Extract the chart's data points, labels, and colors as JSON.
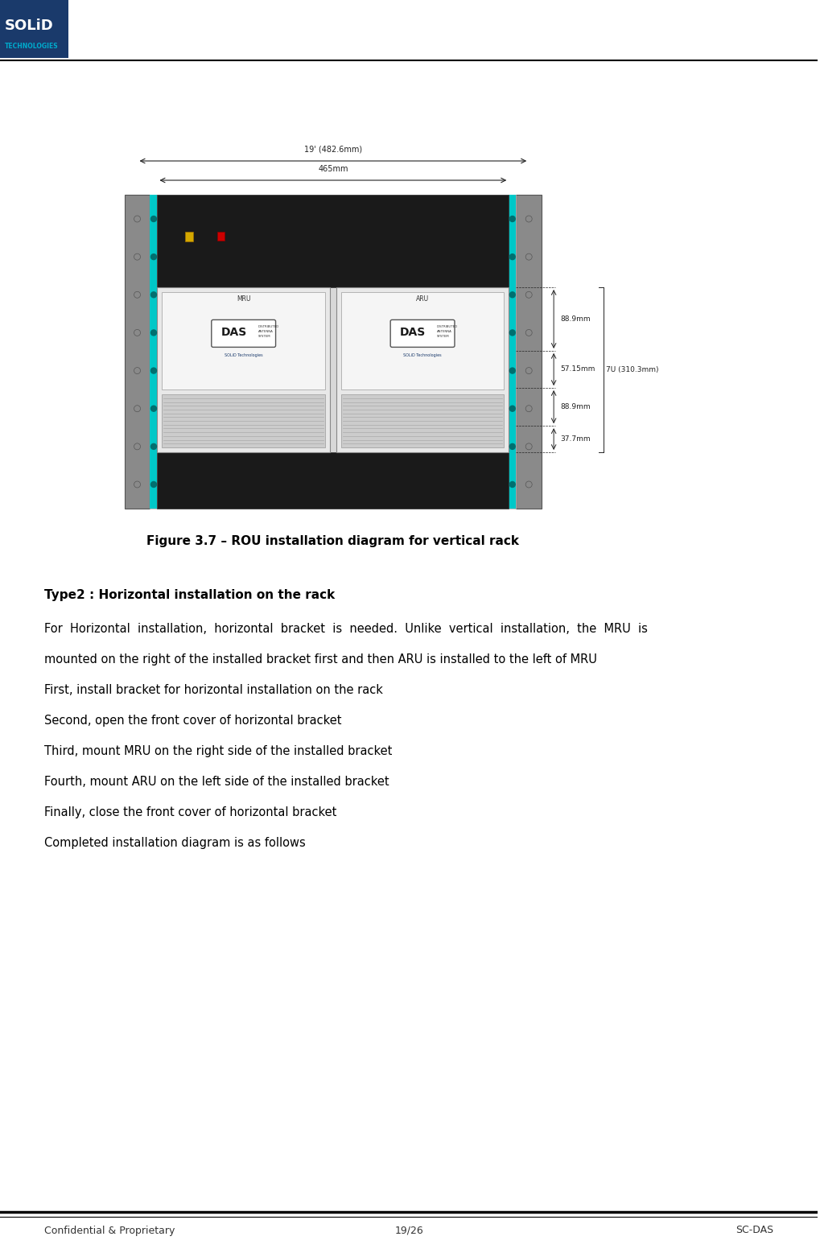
{
  "page_width": 10.19,
  "page_height": 15.62,
  "bg_color": "#ffffff",
  "header_logo_color": "#1a3a6b",
  "header_line_color": "#000000",
  "footer_line_color": "#000000",
  "footer_text_left": "Confidential & Proprietary",
  "footer_text_center": "19/26",
  "footer_text_right": "SC-DAS",
  "footer_font_size": 9,
  "figure_caption": "Figure 3.7 – ROU installation diagram for vertical rack",
  "figure_caption_fontsize": 11,
  "section_title": "Type2 : Horizontal installation on the rack",
  "section_title_fontsize": 11,
  "body_fontsize": 10.5,
  "body_lines": [
    "For  Horizontal  installation,  horizontal  bracket  is  needed.  Unlike  vertical  installation,  the  MRU  is",
    "mounted on the right of the installed bracket first and then ARU is installed to the left of MRU",
    "First, install bracket for horizontal installation on the rack",
    "Second, open the front cover of horizontal bracket",
    "Third, mount MRU on the right side of the installed bracket",
    "Fourth, mount ARU on the left side of the installed bracket",
    "Finally, close the front cover of horizontal bracket",
    "Completed installation diagram is as follows"
  ],
  "dim_19inch": "19' (482.6mm)",
  "dim_465mm": "465mm",
  "dim_88_9mm": "88.9mm",
  "dim_57_15mm": "57.15mm",
  "dim_7U": "7U (310.3mm)",
  "dim_88_9mm_2": "88.9mm",
  "dim_37_7mm": "37.7mm"
}
